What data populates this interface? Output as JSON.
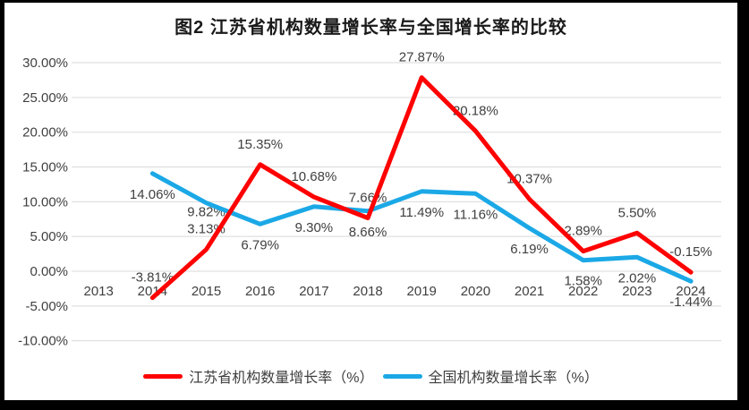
{
  "palette": {
    "frame_background": "#000000",
    "chart_background": "#ffffff",
    "gridline": "#d9d9d9",
    "text": "#3f3f3f",
    "jiangsu_red": "#fe0000",
    "national_blue": "#1ba8e6"
  },
  "chart_data": {
    "type": "line",
    "title": "图2  江苏省机构数量增长率与全国增长率的比较",
    "categories": [
      "2013",
      "2014",
      "2015",
      "2016",
      "2017",
      "2018",
      "2019",
      "2020",
      "2021",
      "2022",
      "2023",
      "2024"
    ],
    "y_ticks": [
      "30.00%",
      "25.00%",
      "20.00%",
      "15.00%",
      "10.00%",
      "5.00%",
      "0.00%",
      "-5.00%",
      "-10.00%"
    ],
    "ylim": [
      -10,
      30
    ],
    "grid": true,
    "legend_position": "bottom",
    "series": [
      {
        "name": "江苏省机构数量增长率（%）",
        "color": "#fe0000",
        "label_side": "above",
        "values": [
          null,
          -3.81,
          3.13,
          15.35,
          10.68,
          7.66,
          27.87,
          20.18,
          10.37,
          2.89,
          5.5,
          -0.15
        ],
        "labels": [
          null,
          "-3.81%",
          "3.13%",
          "15.35%",
          "10.68%",
          "7.66%",
          "27.87%",
          "20.18%",
          "10.37%",
          "2.89%",
          "5.50%",
          "-0.15%"
        ],
        "label_dy_overrides": {}
      },
      {
        "name": "全国机构数量增长率（%）",
        "color": "#1ba8e6",
        "label_side": "below",
        "values": [
          null,
          14.06,
          9.82,
          6.79,
          9.3,
          8.66,
          11.49,
          11.16,
          6.19,
          1.58,
          2.02,
          -1.44
        ],
        "labels": [
          null,
          "14.06%",
          "9.82%",
          "6.79%",
          "9.30%",
          "8.66%",
          "11.49%",
          "11.16%",
          "6.19%",
          "1.58%",
          "2.02%",
          "-1.44%"
        ],
        "label_dy_overrides": {
          "2": 10
        }
      }
    ]
  }
}
